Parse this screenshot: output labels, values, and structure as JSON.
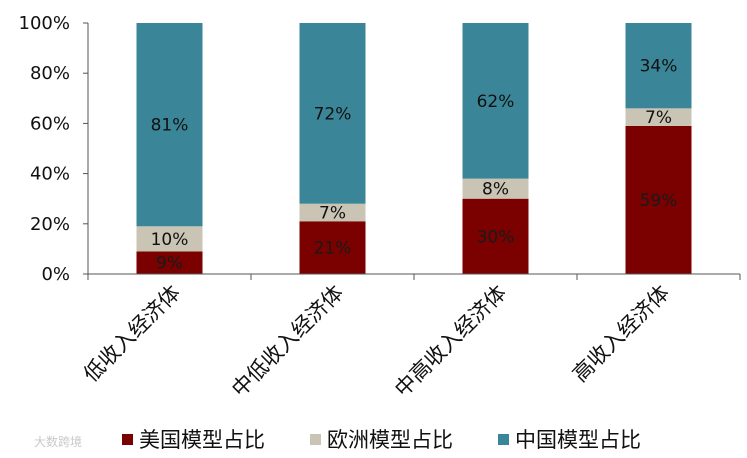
{
  "chart_data": {
    "type": "bar",
    "stacked": true,
    "categories": [
      "低收入经济体",
      "中低收入经济体",
      "中高收入经济体",
      "高收入经济体"
    ],
    "series": [
      {
        "name": "美国模型占比",
        "color": "#7b0000",
        "label_color": "#1a1a1a",
        "values": [
          9,
          21,
          30,
          59
        ],
        "labels": [
          "9%",
          "21%",
          "30%",
          "59%"
        ]
      },
      {
        "name": "欧洲模型占比",
        "color": "#c9c4b4",
        "label_color": "#111111",
        "values": [
          10,
          7,
          8,
          7
        ],
        "labels": [
          "10%",
          "7%",
          "8%",
          "7%"
        ]
      },
      {
        "name": "中国模型占比",
        "color": "#3a8597",
        "label_color": "#111111",
        "values": [
          81,
          72,
          62,
          34
        ],
        "labels": [
          "81%",
          "72%",
          "62%",
          "34%"
        ]
      }
    ],
    "y_ticks": [
      "0%",
      "20%",
      "40%",
      "60%",
      "80%",
      "100%"
    ],
    "ylim": [
      0,
      100
    ],
    "grid": false,
    "legend_position": "bottom"
  },
  "watermark": "大数跨境"
}
